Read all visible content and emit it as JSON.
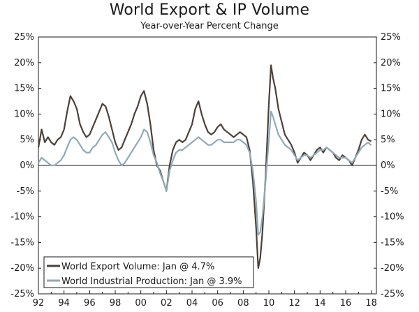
{
  "chart_data": {
    "type": "line",
    "title": "World Export & IP Volume",
    "subtitle": "Year-over-Year Percent Change",
    "xlabel": "",
    "ylabel": "",
    "xlim": [
      1992,
      2018.4
    ],
    "ylim": [
      -25,
      25
    ],
    "y_ticks": [
      25,
      20,
      15,
      10,
      5,
      0,
      -5,
      -10,
      -15,
      -20,
      -25
    ],
    "y_tick_labels": [
      "25%",
      "20%",
      "15%",
      "10%",
      "5%",
      "0%",
      "-5%",
      "-10%",
      "-15%",
      "-20%",
      "-25%"
    ],
    "x_tick_labels": [
      "92",
      "94",
      "96",
      "98",
      "00",
      "02",
      "04",
      "06",
      "08",
      "10",
      "12",
      "14",
      "16",
      "18"
    ],
    "x_ticks": [
      1992,
      1994,
      1996,
      1998,
      2000,
      2002,
      2004,
      2006,
      2008,
      2010,
      2012,
      2014,
      2016,
      2018
    ],
    "legend_position": "bottom-left",
    "series": [
      {
        "name": "World Export Volume: Jan @ 4.7%",
        "color": "#4d4039",
        "x": [
          1992.0,
          1992.25,
          1992.5,
          1992.75,
          1993.0,
          1993.25,
          1993.5,
          1993.75,
          1994.0,
          1994.25,
          1994.5,
          1994.75,
          1995.0,
          1995.25,
          1995.5,
          1995.75,
          1996.0,
          1996.25,
          1996.5,
          1996.75,
          1997.0,
          1997.25,
          1997.5,
          1997.75,
          1998.0,
          1998.25,
          1998.5,
          1998.75,
          1999.0,
          1999.25,
          1999.5,
          1999.75,
          2000.0,
          2000.25,
          2000.5,
          2000.75,
          2001.0,
          2001.25,
          2001.5,
          2001.75,
          2002.0,
          2002.25,
          2002.5,
          2002.75,
          2003.0,
          2003.25,
          2003.5,
          2003.75,
          2004.0,
          2004.25,
          2004.5,
          2004.75,
          2005.0,
          2005.25,
          2005.5,
          2005.75,
          2006.0,
          2006.25,
          2006.5,
          2006.75,
          2007.0,
          2007.25,
          2007.5,
          2007.75,
          2008.0,
          2008.25,
          2008.5,
          2008.75,
          2009.0,
          2009.17,
          2009.33,
          2009.5,
          2009.75,
          2010.0,
          2010.17,
          2010.33,
          2010.5,
          2010.75,
          2011.0,
          2011.25,
          2011.5,
          2011.75,
          2012.0,
          2012.25,
          2012.5,
          2012.75,
          2013.0,
          2013.25,
          2013.5,
          2013.75,
          2014.0,
          2014.25,
          2014.5,
          2014.75,
          2015.0,
          2015.25,
          2015.5,
          2015.75,
          2016.0,
          2016.25,
          2016.5,
          2016.75,
          2017.0,
          2017.25,
          2017.5,
          2017.75,
          2018.0
        ],
        "values": [
          3.5,
          7.0,
          4.5,
          5.5,
          4.5,
          4.0,
          5.0,
          5.5,
          7.0,
          10.5,
          13.5,
          12.5,
          11.0,
          8.0,
          6.5,
          5.5,
          6.0,
          7.5,
          9.0,
          10.5,
          12.0,
          11.5,
          9.5,
          7.0,
          4.5,
          3.0,
          3.5,
          5.0,
          6.5,
          8.0,
          10.0,
          11.5,
          13.5,
          14.5,
          12.0,
          8.0,
          3.0,
          0.0,
          -1.0,
          -3.0,
          -5.0,
          0.0,
          3.0,
          4.5,
          5.0,
          4.5,
          5.0,
          6.5,
          8.0,
          11.0,
          12.5,
          10.0,
          8.0,
          6.5,
          6.0,
          6.5,
          7.5,
          8.0,
          7.0,
          6.5,
          6.0,
          5.5,
          6.0,
          6.5,
          6.0,
          5.5,
          3.0,
          -3.0,
          -12.0,
          -20.0,
          -18.0,
          -13.0,
          -2.0,
          12.0,
          19.5,
          17.0,
          15.0,
          11.0,
          8.5,
          6.0,
          5.0,
          4.0,
          2.5,
          0.5,
          1.5,
          2.5,
          2.0,
          1.0,
          2.0,
          3.0,
          3.5,
          2.5,
          3.5,
          3.0,
          2.5,
          1.5,
          1.0,
          2.0,
          1.5,
          1.0,
          0.0,
          1.5,
          3.0,
          5.0,
          6.0,
          5.0,
          4.7
        ]
      },
      {
        "name": "World Industrial Production: Jan @ 3.9%",
        "color": "#8faab8",
        "x": [
          1992.0,
          1992.25,
          1992.5,
          1992.75,
          1993.0,
          1993.25,
          1993.5,
          1993.75,
          1994.0,
          1994.25,
          1994.5,
          1994.75,
          1995.0,
          1995.25,
          1995.5,
          1995.75,
          1996.0,
          1996.25,
          1996.5,
          1996.75,
          1997.0,
          1997.25,
          1997.5,
          1997.75,
          1998.0,
          1998.25,
          1998.5,
          1998.75,
          1999.0,
          1999.25,
          1999.5,
          1999.75,
          2000.0,
          2000.25,
          2000.5,
          2000.75,
          2001.0,
          2001.25,
          2001.5,
          2001.75,
          2002.0,
          2002.25,
          2002.5,
          2002.75,
          2003.0,
          2003.25,
          2003.5,
          2003.75,
          2004.0,
          2004.25,
          2004.5,
          2004.75,
          2005.0,
          2005.25,
          2005.5,
          2005.75,
          2006.0,
          2006.25,
          2006.5,
          2006.75,
          2007.0,
          2007.25,
          2007.5,
          2007.75,
          2008.0,
          2008.25,
          2008.5,
          2008.75,
          2009.0,
          2009.17,
          2009.33,
          2009.5,
          2009.75,
          2010.0,
          2010.17,
          2010.33,
          2010.5,
          2010.75,
          2011.0,
          2011.25,
          2011.5,
          2011.75,
          2012.0,
          2012.25,
          2012.5,
          2012.75,
          2013.0,
          2013.25,
          2013.5,
          2013.75,
          2014.0,
          2014.25,
          2014.5,
          2014.75,
          2015.0,
          2015.25,
          2015.5,
          2015.75,
          2016.0,
          2016.25,
          2016.5,
          2016.75,
          2017.0,
          2017.25,
          2017.5,
          2017.75,
          2018.0
        ],
        "values": [
          0.5,
          1.5,
          1.0,
          0.5,
          0.0,
          0.0,
          0.5,
          1.0,
          2.0,
          3.5,
          5.0,
          5.5,
          5.0,
          4.0,
          3.0,
          2.5,
          2.5,
          3.5,
          4.0,
          5.0,
          6.0,
          6.5,
          5.5,
          4.5,
          2.5,
          1.0,
          0.0,
          0.5,
          1.5,
          2.5,
          3.5,
          4.5,
          5.5,
          7.0,
          6.5,
          4.5,
          2.0,
          0.5,
          -1.5,
          -3.0,
          -5.0,
          -1.0,
          1.0,
          2.5,
          3.0,
          3.0,
          3.5,
          4.0,
          4.5,
          5.0,
          5.5,
          5.0,
          4.5,
          4.0,
          4.0,
          4.5,
          5.0,
          5.0,
          4.5,
          4.5,
          4.5,
          4.5,
          5.0,
          5.0,
          4.5,
          4.0,
          2.5,
          -1.0,
          -7.0,
          -13.5,
          -13.0,
          -10.0,
          -3.0,
          5.0,
          10.5,
          9.5,
          8.0,
          6.0,
          5.0,
          4.0,
          3.5,
          3.0,
          2.0,
          1.0,
          1.5,
          2.0,
          2.0,
          1.5,
          2.0,
          2.5,
          3.0,
          3.0,
          3.5,
          3.0,
          2.5,
          2.0,
          1.5,
          1.5,
          1.5,
          1.0,
          0.5,
          1.5,
          2.5,
          3.5,
          4.0,
          4.5,
          3.9
        ]
      }
    ]
  }
}
